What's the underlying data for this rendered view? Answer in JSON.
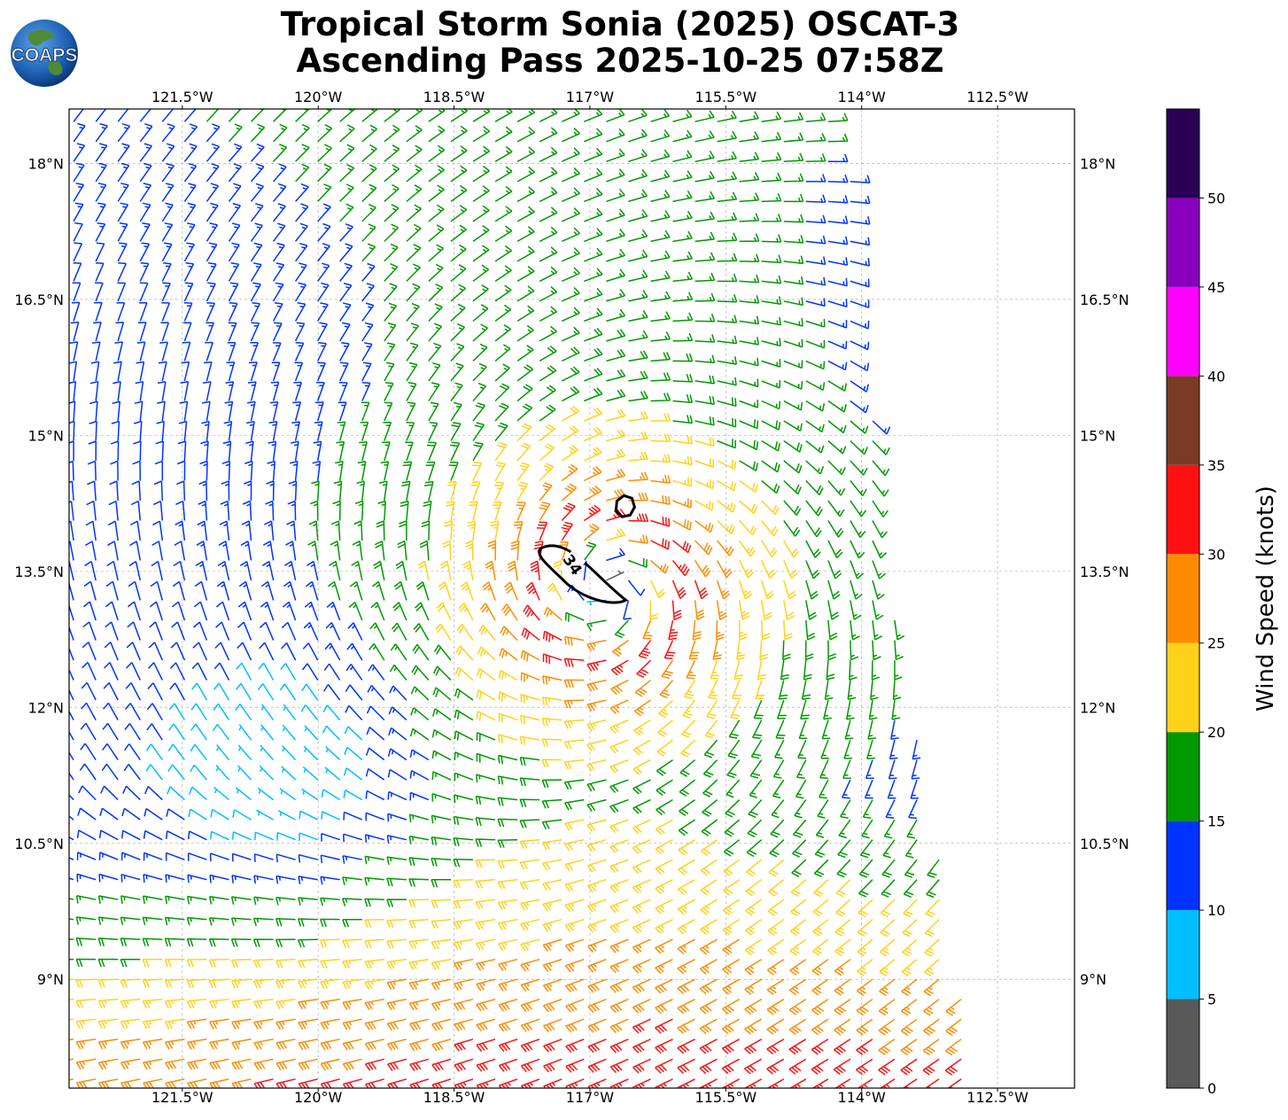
{
  "title": {
    "line1": "Tropical Storm Sonia (2025) OSCAT-3",
    "line2": "Ascending Pass 2025-10-25 07:58Z"
  },
  "logo": {
    "text": "COAPS",
    "icon": "globe-icon"
  },
  "map": {
    "lon_labels": [
      "121.5°W",
      "120°W",
      "118.5°W",
      "117°W",
      "115.5°W",
      "114°W",
      "112.5°W"
    ],
    "lon_values": [
      -121.5,
      -120,
      -118.5,
      -117,
      -115.5,
      -114,
      -112.5
    ],
    "lat_labels": [
      "18°N",
      "16.5°N",
      "15°N",
      "13.5°N",
      "12°N",
      "10.5°N",
      "9°N"
    ],
    "lat_values": [
      18,
      16.5,
      15,
      13.5,
      12,
      10.5,
      9
    ],
    "lon_range": [
      -122.75,
      -111.65
    ],
    "lat_range": [
      7.8,
      18.6
    ],
    "grid": true,
    "storm_center": {
      "lon": -116.8,
      "lat": 13.3
    },
    "contour_label": "34",
    "contour_level_kt": 34,
    "swath_lon_edges": [
      {
        "lat": 18.6,
        "lon": -114.2
      },
      {
        "lat": 13.5,
        "lon": -113.7
      },
      {
        "lat": 7.8,
        "lon": -112.7
      }
    ]
  },
  "colorbar": {
    "label": "Wind Speed (knots)",
    "ticks": [
      "0",
      "5",
      "10",
      "15",
      "20",
      "25",
      "30",
      "35",
      "40",
      "45",
      "50"
    ],
    "bins": [
      {
        "min": 0,
        "max": 5,
        "color": "#595959"
      },
      {
        "min": 5,
        "max": 10,
        "color": "#00bfff"
      },
      {
        "min": 10,
        "max": 15,
        "color": "#0033ff"
      },
      {
        "min": 15,
        "max": 20,
        "color": "#009900"
      },
      {
        "min": 20,
        "max": 25,
        "color": "#ffd21a"
      },
      {
        "min": 25,
        "max": 30,
        "color": "#ff8c00"
      },
      {
        "min": 30,
        "max": 35,
        "color": "#ff1111"
      },
      {
        "min": 35,
        "max": 40,
        "color": "#7b3a25"
      },
      {
        "min": 40,
        "max": 45,
        "color": "#ff00ff"
      },
      {
        "min": 45,
        "max": 50,
        "color": "#8800bb"
      },
      {
        "min": 50,
        "max": 55,
        "color": "#2a0055"
      }
    ]
  }
}
